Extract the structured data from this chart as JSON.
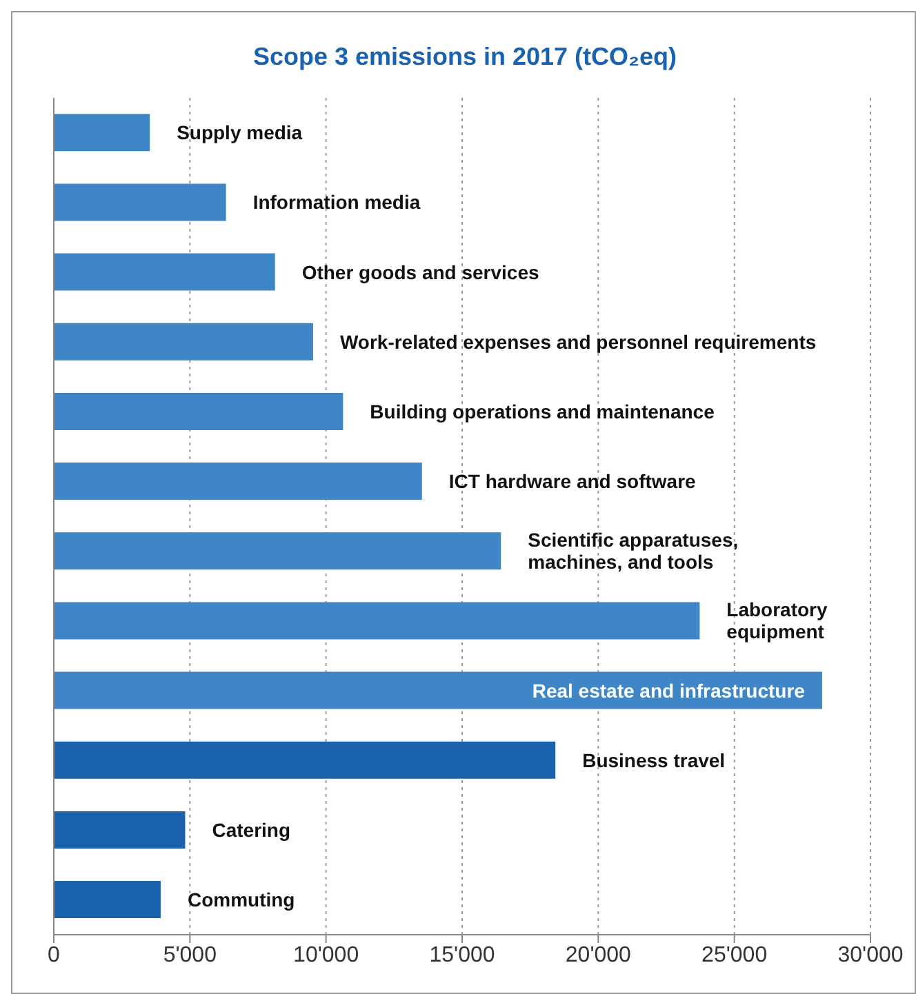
{
  "chart_data": {
    "type": "bar",
    "orientation": "horizontal",
    "title": "Scope 3 emissions in 2017 (tCO₂eq)",
    "categories": [
      "Supply media",
      "Information media",
      "Other goods and services",
      "Work-related expenses and personnel requirements",
      "Building operations and maintenance",
      "ICT hardware and software",
      "Scientific apparatuses, machines, and tools",
      "Laboratory equipment",
      "Real estate and infrastructure",
      "Business travel",
      "Catering",
      "Commuting"
    ],
    "values": [
      3500,
      6300,
      8100,
      9500,
      10600,
      13500,
      16400,
      23700,
      28200,
      18400,
      4800,
      3900
    ],
    "colors": [
      "#3f86c6",
      "#3f86c6",
      "#3f86c6",
      "#3f86c6",
      "#3f86c6",
      "#3f86c6",
      "#3f86c6",
      "#3f86c6",
      "#3f86c6",
      "#1a62ad",
      "#1a62ad",
      "#1a62ad"
    ],
    "xlim": [
      0,
      30000
    ],
    "xticks": [
      0,
      {
        "value": 5000,
        "label": "5'000"
      },
      {
        "value": 10000,
        "label": "10'000"
      },
      {
        "value": 15000,
        "label": "15'000"
      },
      {
        "value": 20000,
        "label": "20'000"
      },
      {
        "value": 25000,
        "label": "25'000"
      },
      {
        "value": 30000,
        "label": "30'000"
      }
    ],
    "grid": "x"
  }
}
